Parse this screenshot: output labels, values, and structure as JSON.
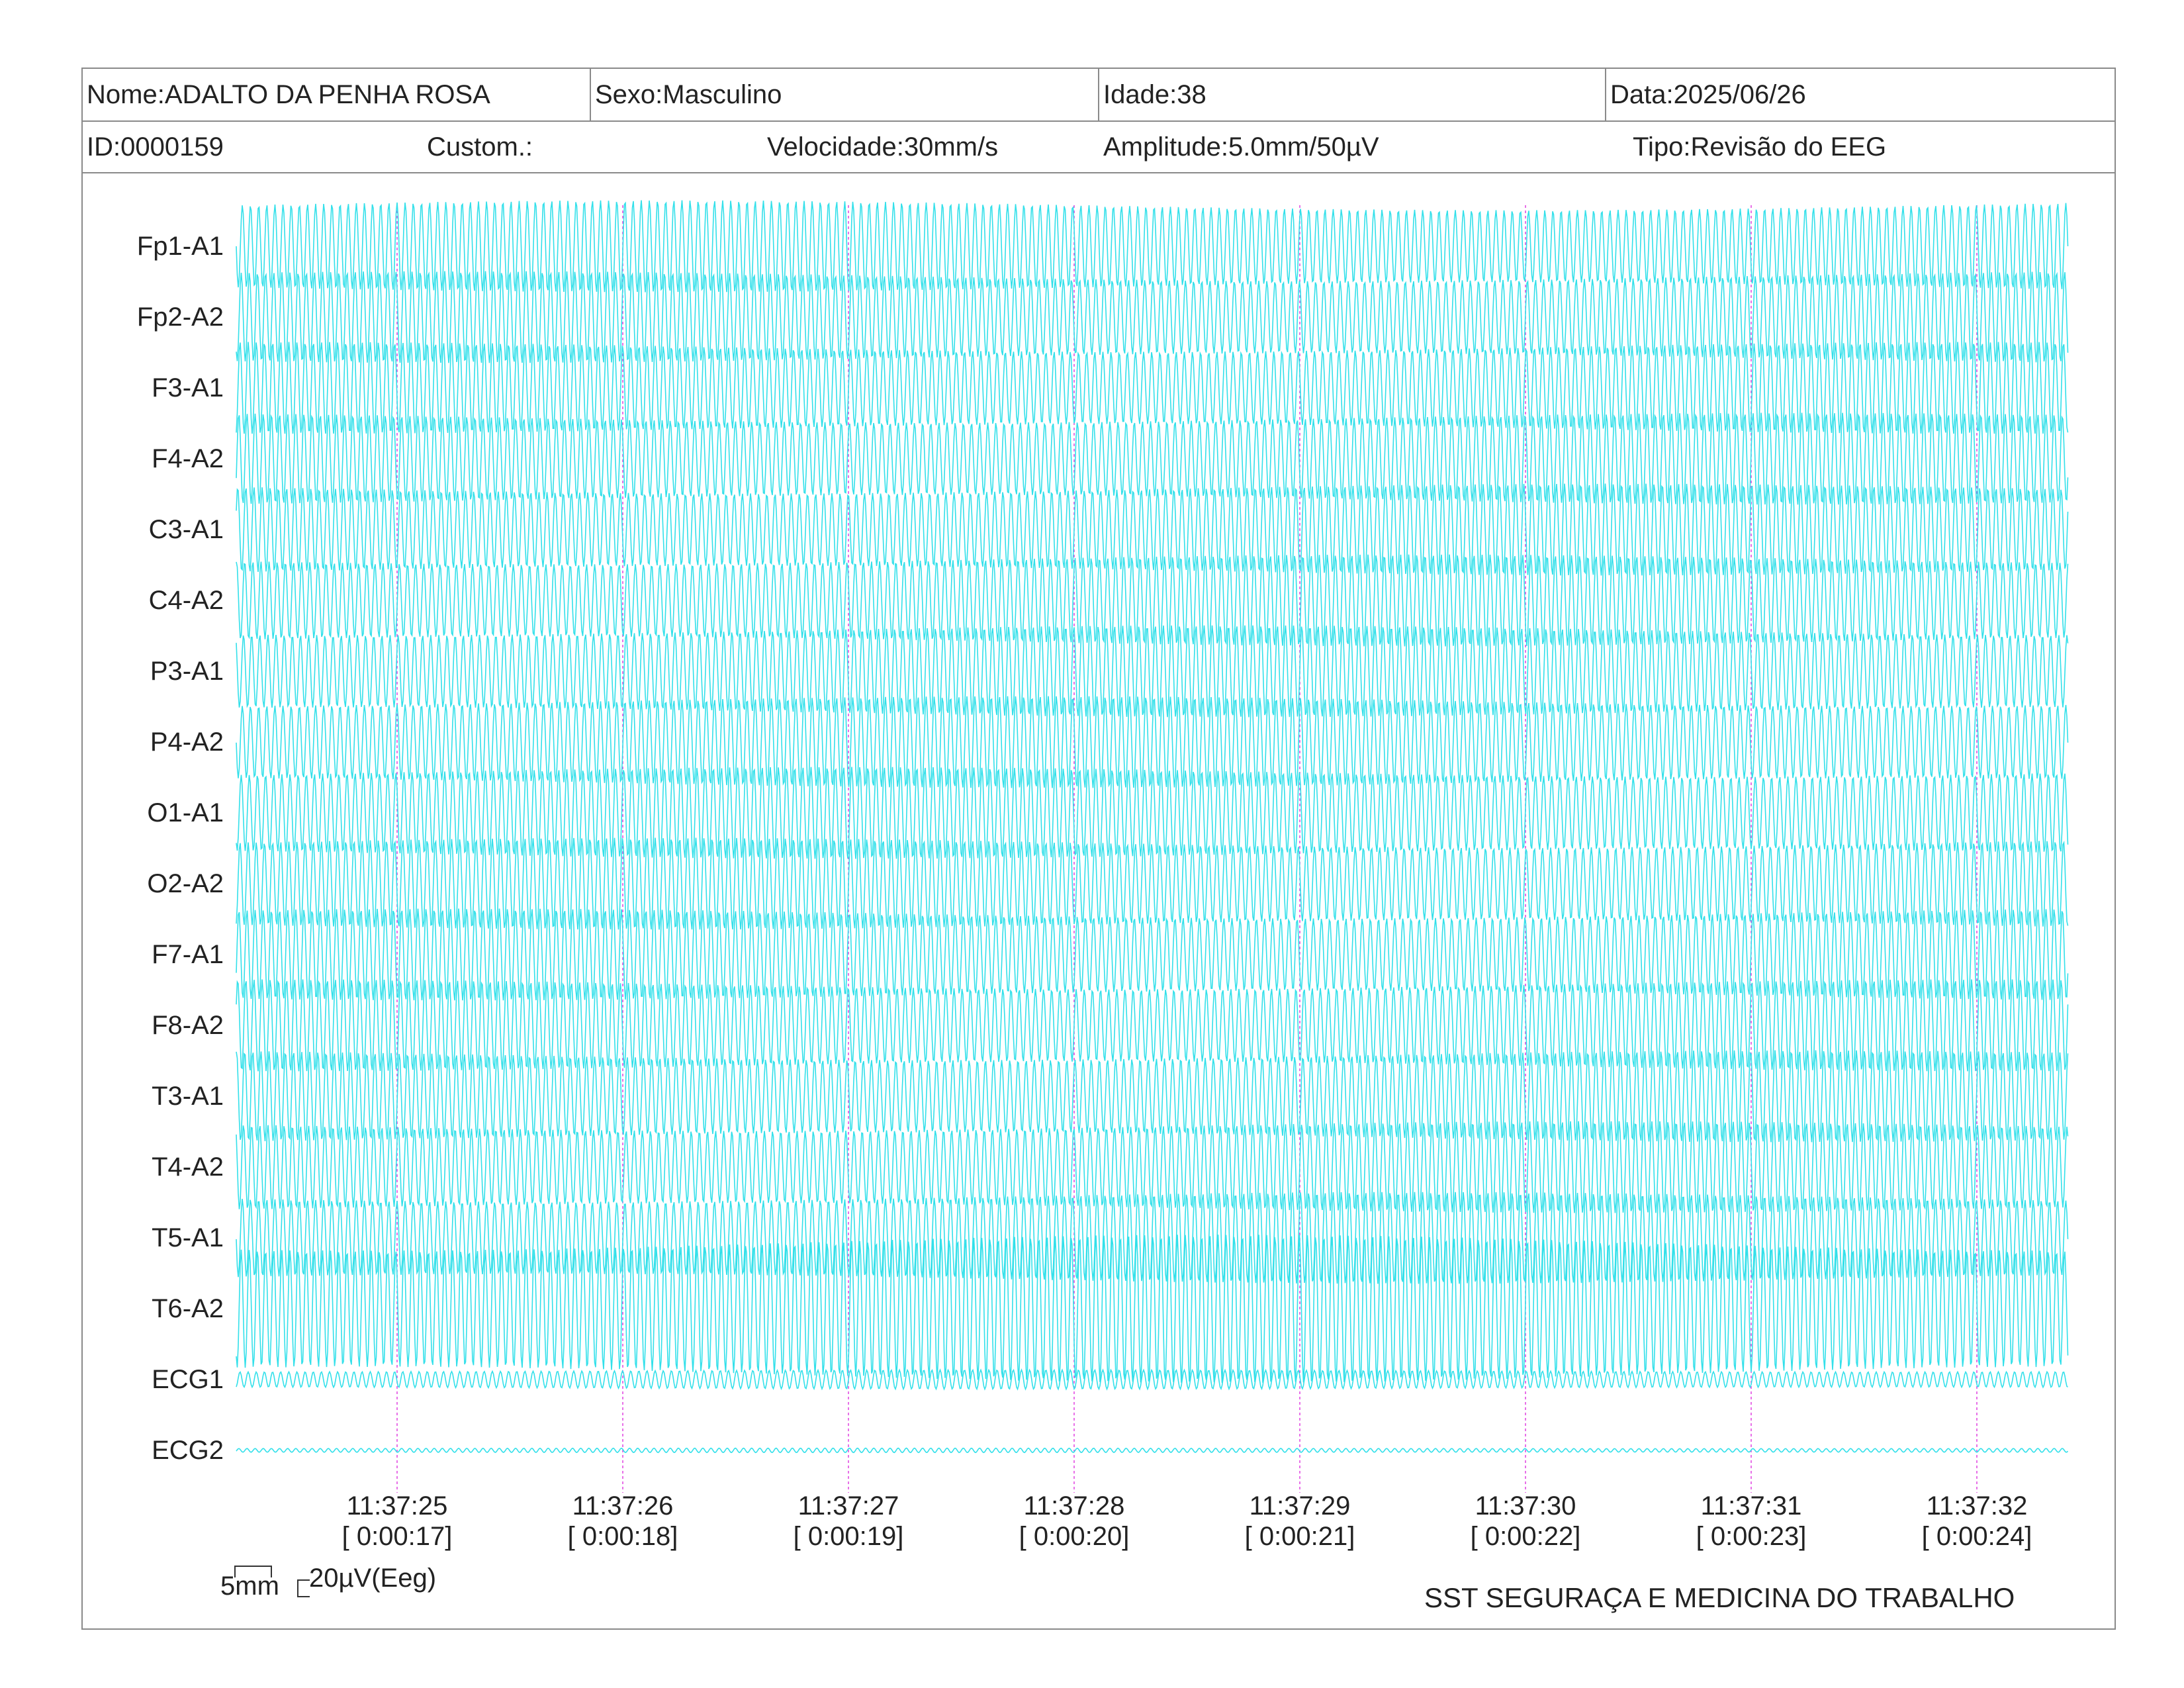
{
  "header": {
    "row1": {
      "nome": "Nome:ADALTO DA PENHA ROSA",
      "sexo": "Sexo:Masculino",
      "idade": "Idade:38",
      "data": "Data:2025/06/26"
    },
    "row2": {
      "id": "ID:0000159",
      "custom": "Custom.:",
      "velocidade": "Velocidade:30mm/s",
      "amplitude": "Amplitude:5.0mm/50µV",
      "tipo": "Tipo:Revisão do EEG"
    }
  },
  "channels": [
    "Fp1-A1",
    "Fp2-A2",
    "F3-A1",
    "F4-A2",
    "C3-A1",
    "C4-A2",
    "P3-A1",
    "P4-A2",
    "O1-A1",
    "O2-A2",
    "F7-A1",
    "F8-A2",
    "T3-A1",
    "T4-A2",
    "T5-A1",
    "T6-A2",
    "ECG1",
    "ECG2"
  ],
  "time_markers": [
    {
      "clock": "11:37:25",
      "elapsed": "[ 0:00:17]"
    },
    {
      "clock": "11:37:26",
      "elapsed": "[ 0:00:18]"
    },
    {
      "clock": "11:37:27",
      "elapsed": "[ 0:00:19]"
    },
    {
      "clock": "11:37:28",
      "elapsed": "[ 0:00:20]"
    },
    {
      "clock": "11:37:29",
      "elapsed": "[ 0:00:21]"
    },
    {
      "clock": "11:37:30",
      "elapsed": "[ 0:00:22]"
    },
    {
      "clock": "11:37:31",
      "elapsed": "[ 0:00:23]"
    },
    {
      "clock": "11:37:32",
      "elapsed": "[ 0:00:24]"
    }
  ],
  "scale": {
    "time_label": "5mm",
    "amp_label": "20µV(Eeg)"
  },
  "footer": "SST SEGURAÇA E MEDICINA DO TRABALHO",
  "colors": {
    "trace": "#33e0ea",
    "marker": "#e040e0",
    "border": "#8a8a8a"
  }
}
